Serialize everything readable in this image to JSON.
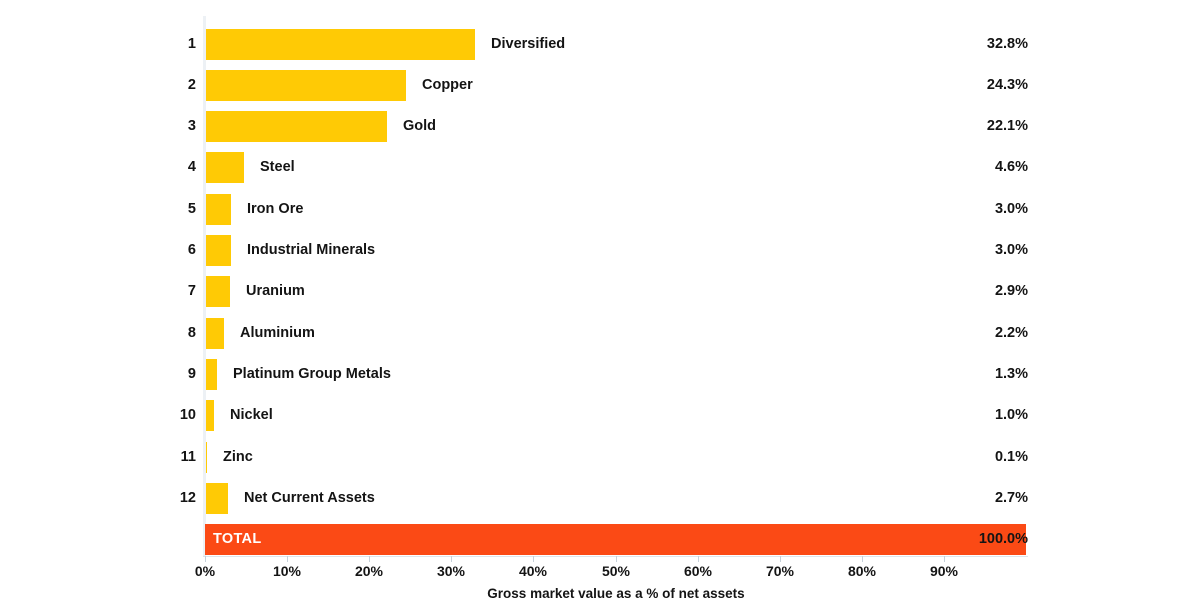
{
  "chart_data": {
    "type": "bar",
    "orientation": "horizontal",
    "title": "",
    "xlabel": "Gross market value as a % of net assets",
    "ylabel": "",
    "xlim": [
      0,
      100
    ],
    "grid": false,
    "legend": "none",
    "bar_color": "#FFCA05",
    "total_color": "#FB4A15",
    "x_ticks": [
      "0%",
      "10%",
      "20%",
      "30%",
      "40%",
      "50%",
      "60%",
      "70%",
      "80%",
      "90%"
    ],
    "rows": [
      {
        "rank": "1",
        "label": "Diversified",
        "value": 32.8,
        "display": "32.8%"
      },
      {
        "rank": "2",
        "label": "Copper",
        "value": 24.3,
        "display": "24.3%"
      },
      {
        "rank": "3",
        "label": "Gold",
        "value": 22.1,
        "display": "22.1%"
      },
      {
        "rank": "4",
        "label": "Steel",
        "value": 4.6,
        "display": "4.6%"
      },
      {
        "rank": "5",
        "label": "Iron Ore",
        "value": 3.0,
        "display": "3.0%"
      },
      {
        "rank": "6",
        "label": "Industrial Minerals",
        "value": 3.0,
        "display": "3.0%"
      },
      {
        "rank": "7",
        "label": "Uranium",
        "value": 2.9,
        "display": "2.9%"
      },
      {
        "rank": "8",
        "label": "Aluminium",
        "value": 2.2,
        "display": "2.2%"
      },
      {
        "rank": "9",
        "label": "Platinum Group Metals",
        "value": 1.3,
        "display": "1.3%"
      },
      {
        "rank": "10",
        "label": "Nickel",
        "value": 1.0,
        "display": "1.0%"
      },
      {
        "rank": "11",
        "label": "Zinc",
        "value": 0.1,
        "display": "0.1%"
      },
      {
        "rank": "12",
        "label": "Net Current Assets",
        "value": 2.7,
        "display": "2.7%"
      }
    ],
    "total": {
      "label": "TOTAL",
      "value": 100.0,
      "display": "100.0%"
    }
  }
}
